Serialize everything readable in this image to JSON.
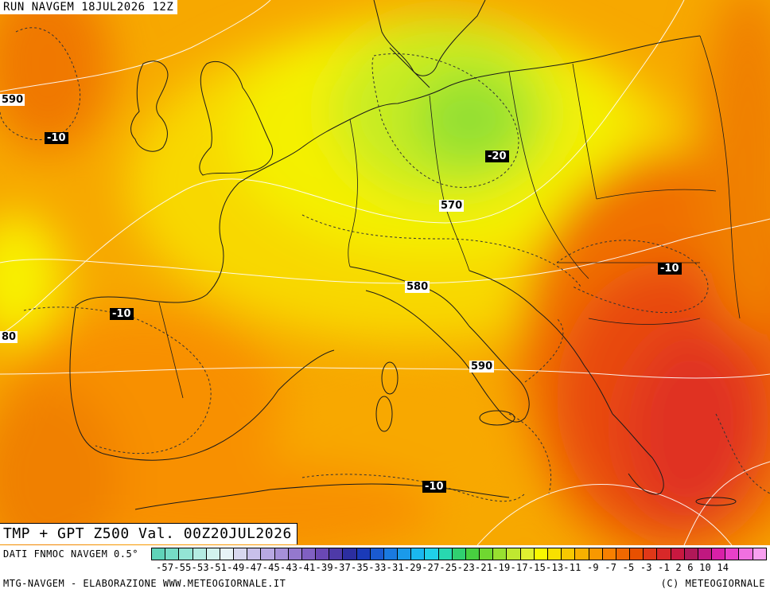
{
  "header": {
    "run_title": "RUN NAVGEM 18JUL2026 12Z",
    "validity": "TMP + GPT Z500 Val. 00Z20JUL2026"
  },
  "map": {
    "temperature_labels": [
      "-10",
      "-20",
      "-10",
      "-10",
      "-10"
    ],
    "geopotential_labels": [
      "590",
      "570",
      "580",
      "590",
      "80"
    ]
  },
  "legend": {
    "source": "DATI FNMOC NAVGEM 0.5°",
    "scale_text": "-57-55-53-51-49-47-45-43-41-39-37-35-33-31-29-27-25-23-21-19-17-15-13-11 -9  -7  -5  -3  -1   2   6  10  14",
    "colors": [
      "#5fd3b8",
      "#76dcc6",
      "#93e4d4",
      "#b4ece2",
      "#d2f3ee",
      "#e7f2f7",
      "#d8d8f0",
      "#c8c0ea",
      "#b8a8e2",
      "#a690d8",
      "#9478ce",
      "#8060c2",
      "#6a48b4",
      "#4e3aa8",
      "#2c2ea0",
      "#1a3ab8",
      "#1a5ad0",
      "#1a7ae0",
      "#1a9aea",
      "#1ab8f0",
      "#20d0e8",
      "#28d8b0",
      "#30d070",
      "#48d040",
      "#70d830",
      "#98e030",
      "#c0e830",
      "#e0f030",
      "#f8f800",
      "#f8e000",
      "#f8c800",
      "#f8b000",
      "#f89800",
      "#f88000",
      "#f06800",
      "#e85000",
      "#e03818",
      "#d82828",
      "#c81840",
      "#b01858",
      "#c01880",
      "#d820a8",
      "#e840c8",
      "#f070e0",
      "#f8a0f0"
    ]
  },
  "footer": {
    "left_credit": "MTG-NAVGEM - ELABORAZIONE WWW.METEOGIORNALE.IT",
    "right_credit": "(C) METEOGIORNALE"
  }
}
